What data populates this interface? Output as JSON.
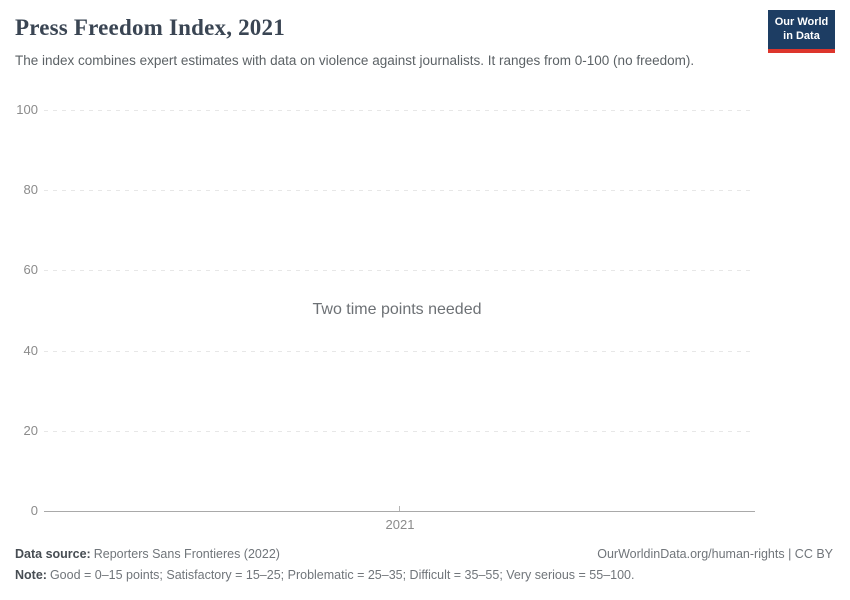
{
  "header": {
    "title": "Press Freedom Index, 2021",
    "subtitle": "The index combines expert estimates with data on violence against journalists. It ranges from 0-100 (no freedom).",
    "logo": {
      "line1": "Our World",
      "line2": "in Data"
    }
  },
  "chart_data": {
    "type": "line",
    "title": "Press Freedom Index, 2021",
    "series": [],
    "empty_message": "Two time points needed",
    "x_ticks": [
      "2021"
    ],
    "y_ticks": [
      0,
      20,
      40,
      60,
      80,
      100
    ],
    "ylim": [
      0,
      100
    ],
    "grid": true,
    "legend_position": "none"
  },
  "footer": {
    "data_source_label": "Data source:",
    "data_source_value": "Reporters Sans Frontieres (2022)",
    "attribution": "OurWorldinData.org/human-rights | CC BY",
    "note_label": "Note:",
    "note_value": "Good = 0–15 points; Satisfactory = 15–25; Problematic = 25–35; Difficult = 35–55; Very serious = 55–100."
  },
  "colors": {
    "logo_bg": "#1d3d63",
    "logo_accent": "#dd352c",
    "title_text": "#3a4553",
    "gridline": "#e7e7e7",
    "axis_line": "#a9a9a9",
    "tick_text": "#8b8b8b"
  }
}
